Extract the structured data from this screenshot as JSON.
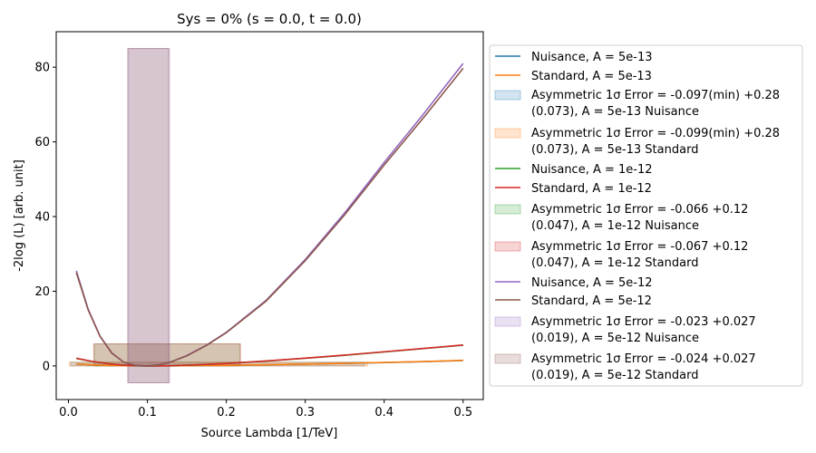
{
  "chart_data": {
    "type": "line",
    "title": "Sys = 0% (s = 0.0, t = 0.0)",
    "xlabel": "Source Lambda [1/TeV]",
    "ylabel": "-2log (L) [arb. unit]",
    "xlim": [
      -0.0155,
      0.5255
    ],
    "ylim": [
      -9.0,
      89.5
    ],
    "xticks": [
      0.0,
      0.1,
      0.2,
      0.3,
      0.4,
      0.5
    ],
    "xtick_labels": [
      "0.0",
      "0.1",
      "0.2",
      "0.3",
      "0.4",
      "0.5"
    ],
    "yticks": [
      0,
      20,
      40,
      60,
      80
    ],
    "ytick_labels": [
      "0",
      "20",
      "40",
      "60",
      "80"
    ],
    "grid": false,
    "legend_placement": "outside-right",
    "series": [
      {
        "name": "Nuisance, A = 5e-13",
        "color": "#1f77b4",
        "kind": "curve",
        "x": [
          0.01,
          0.04,
          0.07,
          0.1,
          0.13,
          0.16,
          0.2,
          0.25,
          0.3,
          0.35,
          0.4,
          0.45,
          0.5
        ],
        "y": [
          0.5,
          0.2,
          0.05,
          0.0,
          0.02,
          0.07,
          0.16,
          0.31,
          0.49,
          0.68,
          0.9,
          1.15,
          1.45
        ]
      },
      {
        "name": "Standard, A = 5e-13",
        "color": "#ff7f0e",
        "kind": "curve",
        "x": [
          0.01,
          0.04,
          0.07,
          0.1,
          0.13,
          0.16,
          0.2,
          0.25,
          0.3,
          0.35,
          0.4,
          0.45,
          0.5
        ],
        "y": [
          0.52,
          0.21,
          0.05,
          0.0,
          0.02,
          0.07,
          0.17,
          0.32,
          0.5,
          0.7,
          0.93,
          1.18,
          1.5
        ]
      },
      {
        "name": "Asymmetric 1σ Error = -0.097(min) +0.28 (0.073), A = 5e-13 Nuisance",
        "color": "#1f77b4",
        "kind": "band",
        "x0": 0.003,
        "x1": 0.375,
        "y0": 0.0,
        "y1": 1.0
      },
      {
        "name": "Asymmetric 1σ Error = -0.099(min) +0.28 (0.073), A = 5e-13 Standard",
        "color": "#ff7f0e",
        "kind": "band",
        "x0": 0.001,
        "x1": 0.379,
        "y0": 0.0,
        "y1": 1.0
      },
      {
        "name": "Nuisance, A = 1e-12",
        "color": "#2ca02c",
        "kind": "curve",
        "x": [
          0.01,
          0.03,
          0.05,
          0.07,
          0.1,
          0.13,
          0.16,
          0.2,
          0.25,
          0.3,
          0.35,
          0.4,
          0.45,
          0.5
        ],
        "y": [
          2.0,
          1.2,
          0.6,
          0.2,
          0.0,
          0.07,
          0.27,
          0.65,
          1.3,
          2.05,
          2.85,
          3.75,
          4.65,
          5.55
        ]
      },
      {
        "name": "Standard, A = 1e-12",
        "color": "#d62728",
        "kind": "curve",
        "x": [
          0.01,
          0.03,
          0.05,
          0.07,
          0.1,
          0.13,
          0.16,
          0.2,
          0.25,
          0.3,
          0.35,
          0.4,
          0.45,
          0.5
        ],
        "y": [
          2.05,
          1.22,
          0.62,
          0.2,
          0.0,
          0.07,
          0.28,
          0.66,
          1.32,
          2.08,
          2.9,
          3.8,
          4.7,
          5.6
        ]
      },
      {
        "name": "Asymmetric 1σ Error = -0.066 +0.12 (0.047), A = 1e-12 Nuisance",
        "color": "#2ca02c",
        "kind": "band",
        "x0": 0.033,
        "x1": 0.217,
        "y0": 0.0,
        "y1": 5.9
      },
      {
        "name": "Asymmetric 1σ Error = -0.067 +0.12 (0.047), A = 1e-12 Standard",
        "color": "#d62728",
        "kind": "band",
        "x0": 0.032,
        "x1": 0.218,
        "y0": 0.0,
        "y1": 5.9
      },
      {
        "name": "Nuisance, A = 5e-12",
        "color": "#9467bd",
        "kind": "curve",
        "x": [
          0.01,
          0.025,
          0.04,
          0.055,
          0.07,
          0.085,
          0.1,
          0.115,
          0.13,
          0.15,
          0.175,
          0.2,
          0.25,
          0.3,
          0.35,
          0.4,
          0.45,
          0.5
        ],
        "y": [
          25.5,
          15.2,
          8.0,
          3.5,
          1.0,
          0.15,
          0.0,
          0.3,
          1.1,
          2.8,
          5.6,
          9.0,
          17.5,
          28.5,
          41.0,
          54.5,
          67.5,
          81.0
        ]
      },
      {
        "name": "Standard, A = 5e-12",
        "color": "#8c564b",
        "kind": "curve",
        "x": [
          0.01,
          0.025,
          0.04,
          0.055,
          0.07,
          0.085,
          0.1,
          0.115,
          0.13,
          0.15,
          0.175,
          0.2,
          0.25,
          0.3,
          0.35,
          0.4,
          0.45,
          0.5
        ],
        "y": [
          25.0,
          15.0,
          7.9,
          3.4,
          1.0,
          0.15,
          0.0,
          0.3,
          1.1,
          2.7,
          5.5,
          8.9,
          17.3,
          28.2,
          40.5,
          53.8,
          66.5,
          79.7
        ]
      },
      {
        "name": "Asymmetric 1σ Error = -0.023 +0.027 (0.019), A = 5e-12 Nuisance",
        "color": "#9467bd",
        "kind": "band",
        "x0": 0.076,
        "x1": 0.128,
        "y0": -4.5,
        "y1": 85.0
      },
      {
        "name": "Asymmetric 1σ Error = -0.024 +0.027 (0.019), A = 5e-12 Standard",
        "color": "#8c564b",
        "kind": "band",
        "x0": 0.075,
        "x1": 0.127,
        "y0": -4.5,
        "y1": 85.0
      }
    ]
  }
}
